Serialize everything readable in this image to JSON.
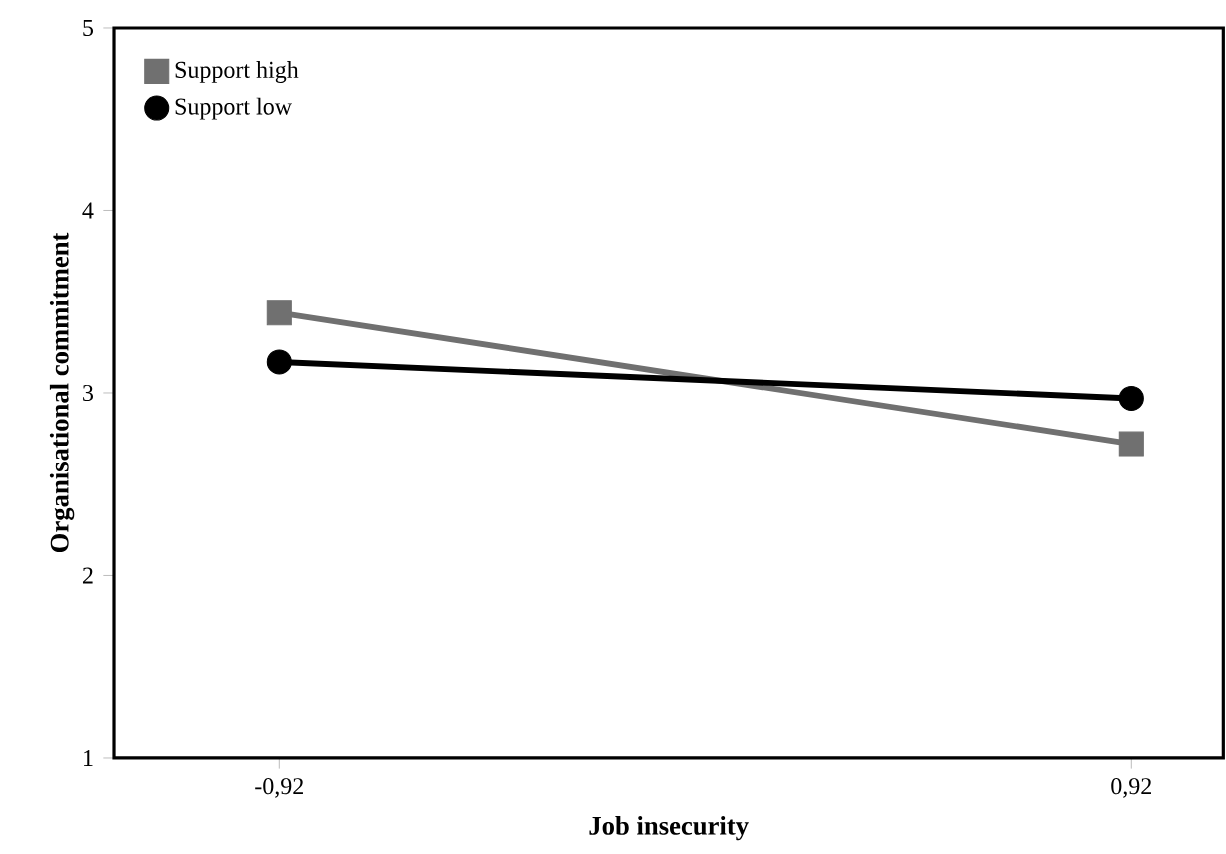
{
  "chart_data": {
    "type": "line",
    "xlabel": "Job insecurity",
    "ylabel": "Organisational commitment",
    "categories": [
      "-0,92",
      "0,92"
    ],
    "ylim": [
      1,
      5
    ],
    "yticks": [
      1,
      2,
      3,
      4,
      5
    ],
    "legend": "top left",
    "line_style": "solid",
    "series": [
      {
        "name": "Support high",
        "color": "#707070",
        "marker": "square",
        "values": [
          3.44,
          2.72
        ]
      },
      {
        "name": "Support low",
        "color": "#000000",
        "marker": "circle",
        "values": [
          3.17,
          2.97
        ]
      }
    ]
  }
}
